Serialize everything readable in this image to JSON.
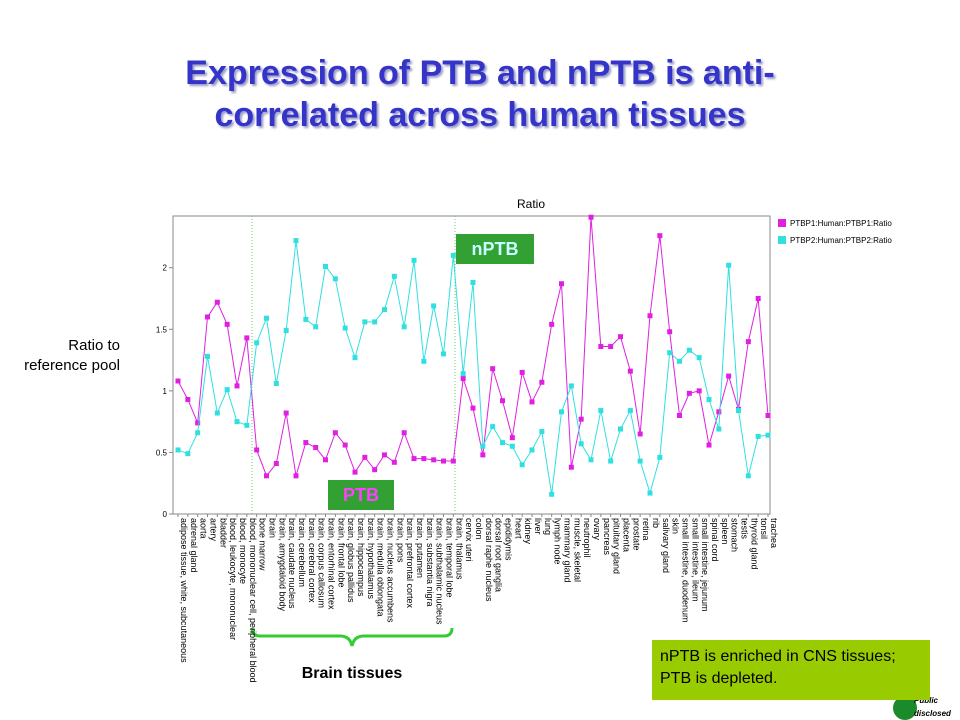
{
  "title_line1": "Expression of PTB and nPTB is anti-",
  "title_line2": "correlated across human tissues",
  "y_axis_label": "Ratio to reference pool",
  "annotation_nptb": "nPTB",
  "annotation_ptb": "PTB",
  "brain_label": "Brain tissues",
  "note": "nPTB is enriched in CNS tissues; PTB is depleted.",
  "logo_line1": "Public",
  "logo_line2": "disclosed",
  "chart_data": {
    "type": "line",
    "title": "Ratio",
    "categories": [
      "adipose tissue, white, subcutaneous",
      "adrenal gland",
      "aorta",
      "artery",
      "bladder",
      "blood, leukocyte, mononuclear",
      "blood, monocyte",
      "blood, mononuclear cell, peripheral blood",
      "bone marrow",
      "brain",
      "brain, amygdaloid body",
      "brain, caudate nucleus",
      "brain, cerebellum",
      "brain, cerebral cortex",
      "brain, corpus callosum",
      "brain, entorhinal cortex",
      "brain, frontal lobe",
      "brain, globus pallidus",
      "brain, hippocampus",
      "brain, hypothalamus",
      "brain, medulla oblongata",
      "brain, nucleus accumbens",
      "brain, pons",
      "brain, prefrontal cortex",
      "brain, putamen",
      "brain, substantia nigra",
      "brain, subthalamic nucleus",
      "brain, temporal lobe",
      "brain, thalamus",
      "cervix uteri",
      "colon",
      "dorsal raphe nucleus",
      "dorsal root ganglia",
      "epididymis",
      "heart",
      "kidney",
      "liver",
      "lung",
      "lymph node",
      "mammary gland",
      "muscle, skeletal",
      "neutrophil",
      "ovary",
      "pancreas",
      "pituitary gland",
      "placenta",
      "prostate",
      "retina",
      "rib",
      "salivary gland",
      "skin",
      "small intestine, duodenum",
      "small intestine, ileum",
      "small intestine, jejunum",
      "spinal cord",
      "spleen",
      "stomach",
      "testis",
      "thyroid gland",
      "tonsil",
      "trachea"
    ],
    "series": [
      {
        "name": "PTBP1:Human:PTBP1:Ratio",
        "color": "#e020e0",
        "values": [
          1.08,
          0.93,
          0.74,
          1.6,
          1.72,
          1.54,
          1.04,
          1.43,
          0.52,
          0.31,
          0.41,
          0.82,
          0.31,
          0.58,
          0.54,
          0.44,
          0.66,
          0.56,
          0.34,
          0.46,
          0.36,
          0.48,
          0.42,
          0.66,
          0.45,
          0.45,
          0.44,
          0.43,
          0.43,
          1.1,
          0.86,
          0.48,
          1.18,
          0.92,
          0.62,
          1.15,
          0.91,
          1.07,
          1.54,
          1.87,
          0.38,
          0.77,
          2.41,
          1.36,
          1.36,
          1.44,
          1.16,
          0.65,
          1.61,
          2.26,
          1.48,
          0.8,
          0.98,
          1.0,
          0.56,
          0.83,
          1.12,
          0.85,
          1.4,
          1.75,
          0.8
        ]
      },
      {
        "name": "PTBP2:Human:PTBP2:Ratio",
        "color": "#30e0e0",
        "values": [
          0.52,
          0.49,
          0.66,
          1.28,
          0.82,
          1.01,
          0.75,
          0.72,
          1.39,
          1.59,
          1.06,
          1.49,
          2.22,
          1.58,
          1.52,
          2.01,
          1.91,
          1.51,
          1.27,
          1.56,
          1.56,
          1.66,
          1.93,
          1.52,
          2.06,
          1.24,
          1.69,
          1.3,
          2.1,
          1.14,
          1.88,
          0.55,
          0.71,
          0.58,
          0.55,
          0.4,
          0.52,
          0.67,
          0.16,
          0.83,
          1.04,
          0.57,
          0.44,
          0.84,
          0.43,
          0.69,
          0.84,
          0.43,
          0.17,
          0.46,
          1.31,
          1.24,
          1.33,
          1.27,
          0.93,
          0.69,
          2.02,
          0.84,
          0.31,
          0.63,
          0.64
        ]
      }
    ],
    "ylim": [
      0,
      2.42
    ],
    "yticks": [
      0,
      0.5,
      1,
      1.5,
      2
    ]
  }
}
